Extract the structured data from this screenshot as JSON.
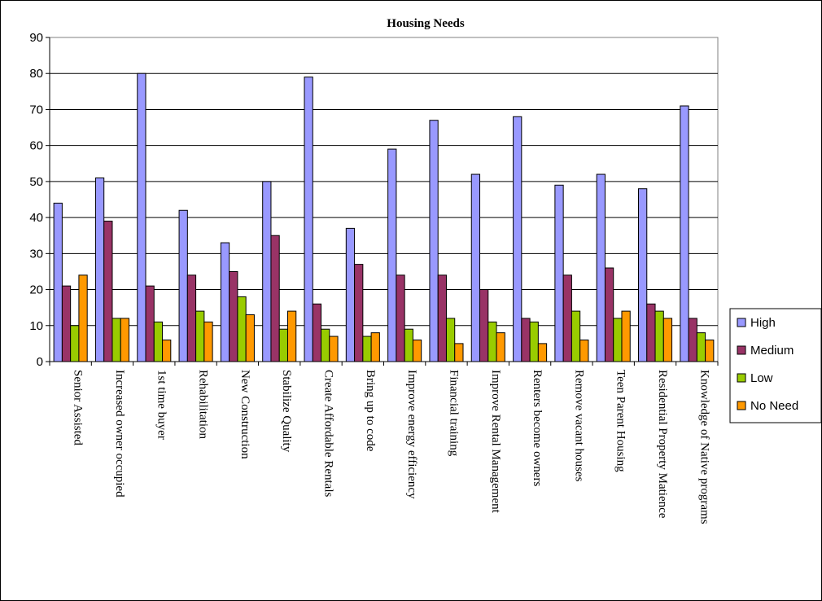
{
  "chart_data": {
    "type": "bar",
    "title": "Housing Needs",
    "xlabel": "",
    "ylabel": "",
    "ylim": [
      0,
      90
    ],
    "yticks": [
      0,
      10,
      20,
      30,
      40,
      50,
      60,
      70,
      80,
      90
    ],
    "grid": "horizontal",
    "legend_position": "right",
    "categories": [
      "Senior Assisted",
      "Increased owner occupied",
      "1st time buyer",
      "Rehabilitation",
      "New Construction",
      "Stabilize Quality",
      "Create Affordable Rentals",
      "Bring up to code",
      "Improve energy efficiency",
      "Financial training",
      "Improve Rental Management",
      "Renters become owners",
      "Remove vacant houses",
      "Teen Parent Housing",
      "Residential Property Matience",
      "Knowledge of Native programs"
    ],
    "series": [
      {
        "name": "High",
        "color": "#9999ff",
        "values": [
          44,
          51,
          80,
          42,
          33,
          50,
          79,
          37,
          59,
          67,
          52,
          68,
          49,
          52,
          48,
          71
        ]
      },
      {
        "name": "Medium",
        "color": "#993366",
        "values": [
          21,
          39,
          21,
          24,
          25,
          35,
          16,
          27,
          24,
          24,
          20,
          12,
          24,
          26,
          16,
          12
        ]
      },
      {
        "name": "Low",
        "color": "#99cc00",
        "values": [
          10,
          12,
          11,
          14,
          18,
          9,
          9,
          7,
          9,
          12,
          11,
          11,
          14,
          12,
          14,
          8
        ]
      },
      {
        "name": "No Need",
        "color": "#ff9900",
        "values": [
          24,
          12,
          6,
          11,
          13,
          14,
          7,
          8,
          6,
          5,
          8,
          5,
          6,
          14,
          12,
          6
        ]
      }
    ]
  }
}
